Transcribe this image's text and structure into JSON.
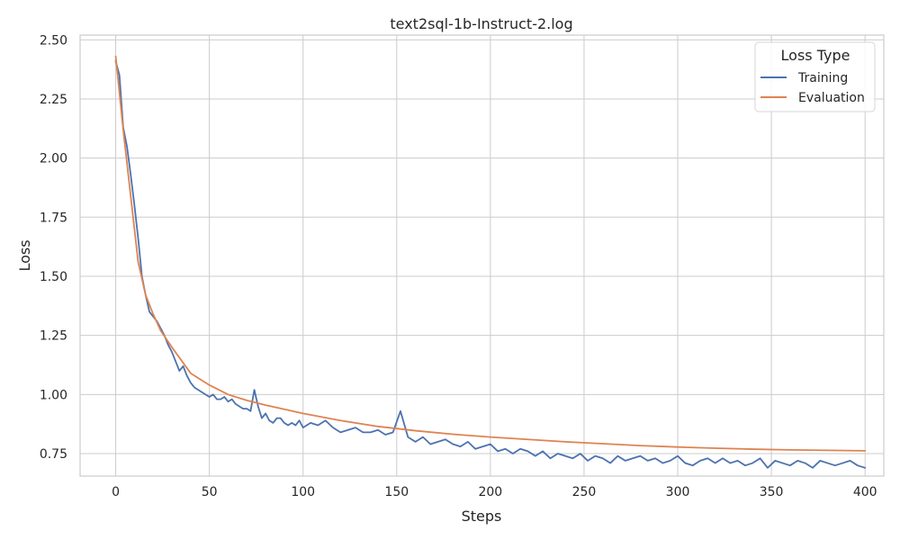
{
  "chart_data": {
    "type": "line",
    "title": "text2sql-1b-Instruct-2.log",
    "xlabel": "Steps",
    "ylabel": "Loss",
    "xlim": [
      -19,
      410
    ],
    "ylim": [
      0.655,
      2.52
    ],
    "xticks": [
      0,
      50,
      100,
      150,
      200,
      250,
      300,
      350,
      400
    ],
    "yticks": [
      0.75,
      1.0,
      1.25,
      1.5,
      1.75,
      2.0,
      2.25,
      2.5
    ],
    "xtick_labels": [
      "0",
      "50",
      "100",
      "150",
      "200",
      "250",
      "300",
      "350",
      "400"
    ],
    "ytick_labels": [
      "0.75",
      "1.00",
      "1.25",
      "1.50",
      "1.75",
      "2.00",
      "2.25",
      "2.50"
    ],
    "grid": true,
    "legend": {
      "title": "Loss Type",
      "placement": "top-right"
    },
    "series": [
      {
        "name": "Training",
        "color": "#4c72b0",
        "x": [
          0,
          2,
          4,
          6,
          8,
          10,
          12,
          14,
          16,
          18,
          20,
          22,
          24,
          26,
          28,
          30,
          32,
          34,
          36,
          38,
          40,
          42,
          44,
          46,
          48,
          50,
          52,
          54,
          56,
          58,
          60,
          62,
          64,
          66,
          68,
          70,
          72,
          74,
          76,
          78,
          80,
          82,
          84,
          86,
          88,
          90,
          92,
          94,
          96,
          98,
          100,
          104,
          108,
          112,
          116,
          120,
          124,
          128,
          132,
          136,
          140,
          144,
          148,
          152,
          156,
          160,
          164,
          168,
          172,
          176,
          180,
          184,
          188,
          192,
          196,
          200,
          204,
          208,
          212,
          216,
          220,
          224,
          228,
          232,
          236,
          240,
          244,
          248,
          252,
          256,
          260,
          264,
          268,
          272,
          276,
          280,
          284,
          288,
          292,
          296,
          300,
          304,
          308,
          312,
          316,
          320,
          324,
          328,
          332,
          336,
          340,
          344,
          348,
          352,
          356,
          360,
          364,
          368,
          372,
          376,
          380,
          384,
          388,
          392,
          396,
          400
        ],
        "y": [
          2.41,
          2.35,
          2.13,
          2.05,
          1.93,
          1.8,
          1.66,
          1.5,
          1.42,
          1.35,
          1.33,
          1.31,
          1.28,
          1.25,
          1.21,
          1.18,
          1.14,
          1.1,
          1.12,
          1.08,
          1.05,
          1.03,
          1.02,
          1.01,
          1.0,
          0.99,
          1.0,
          0.98,
          0.98,
          0.99,
          0.97,
          0.98,
          0.96,
          0.95,
          0.94,
          0.94,
          0.93,
          1.02,
          0.95,
          0.9,
          0.92,
          0.89,
          0.88,
          0.9,
          0.9,
          0.88,
          0.87,
          0.88,
          0.87,
          0.89,
          0.86,
          0.88,
          0.87,
          0.89,
          0.86,
          0.84,
          0.85,
          0.86,
          0.84,
          0.84,
          0.85,
          0.83,
          0.84,
          0.93,
          0.82,
          0.8,
          0.82,
          0.79,
          0.8,
          0.81,
          0.79,
          0.78,
          0.8,
          0.77,
          0.78,
          0.79,
          0.76,
          0.77,
          0.75,
          0.77,
          0.76,
          0.74,
          0.76,
          0.73,
          0.75,
          0.74,
          0.73,
          0.75,
          0.72,
          0.74,
          0.73,
          0.71,
          0.74,
          0.72,
          0.73,
          0.74,
          0.72,
          0.73,
          0.71,
          0.72,
          0.74,
          0.71,
          0.7,
          0.72,
          0.73,
          0.71,
          0.73,
          0.71,
          0.72,
          0.7,
          0.71,
          0.73,
          0.69,
          0.72,
          0.71,
          0.7,
          0.72,
          0.71,
          0.69,
          0.72,
          0.71,
          0.7,
          0.71,
          0.72,
          0.7,
          0.69
        ]
      },
      {
        "name": "Evaluation",
        "color": "#dd8452",
        "x": [
          0,
          4,
          8,
          12,
          16,
          20,
          24,
          30,
          40,
          50,
          60,
          70,
          80,
          100,
          120,
          140,
          160,
          180,
          200,
          220,
          240,
          260,
          280,
          300,
          320,
          340,
          360,
          380,
          400
        ],
        "y": [
          2.43,
          2.12,
          1.84,
          1.56,
          1.42,
          1.34,
          1.27,
          1.2,
          1.09,
          1.04,
          1.0,
          0.975,
          0.955,
          0.92,
          0.89,
          0.865,
          0.847,
          0.832,
          0.82,
          0.81,
          0.8,
          0.792,
          0.784,
          0.778,
          0.773,
          0.769,
          0.766,
          0.764,
          0.762
        ]
      }
    ]
  }
}
